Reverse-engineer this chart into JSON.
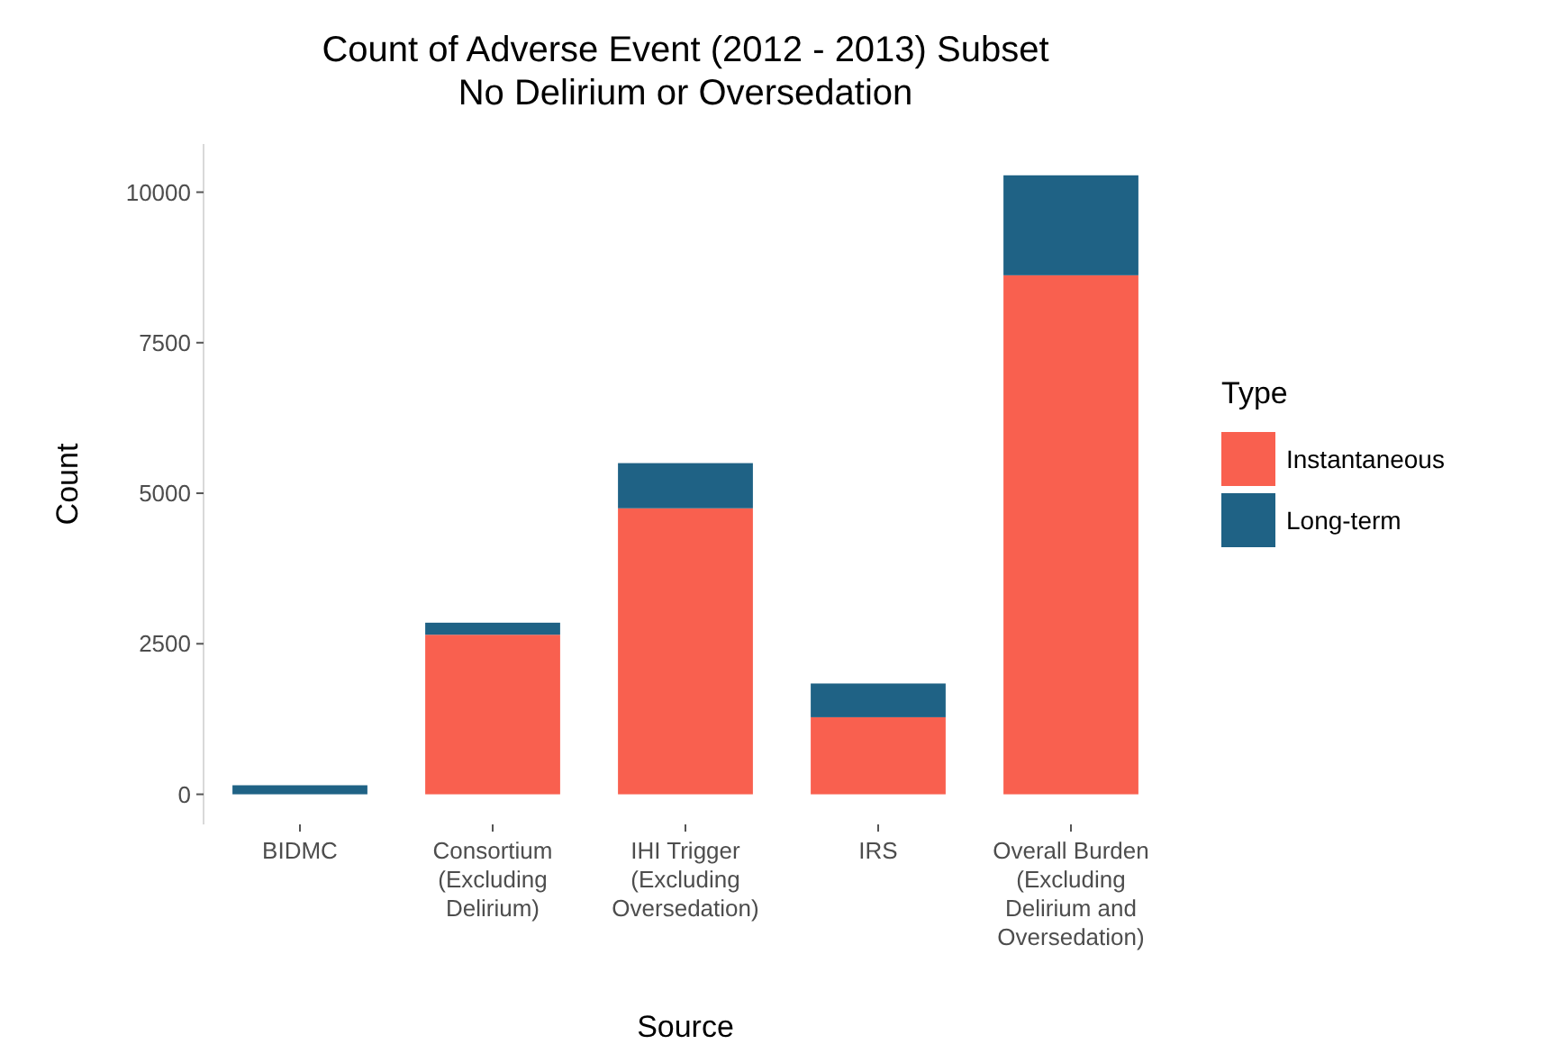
{
  "chart_data": {
    "type": "bar",
    "title": "Count of Adverse Event (2012 - 2013) Subset\nNo Delirium or Oversedation",
    "xlabel": "Source",
    "ylabel": "Count",
    "legend_title": "Type",
    "categories": [
      "BIDMC",
      "Consortium\n(Excluding\nDelirium)",
      "IHI Trigger\n(Excluding\nOversedation)",
      "IRS",
      "Overall Burden\n(Excluding\nDelirium and\nOversedation)"
    ],
    "stacked": true,
    "ylim": [
      -500,
      10800
    ],
    "yticks": [
      0,
      2500,
      5000,
      7500,
      10000
    ],
    "grid": false,
    "legend": "right",
    "series": [
      {
        "name": "Instantaneous",
        "color": "#f9604f",
        "values": [
          0,
          2650,
          4750,
          1280,
          8620
        ]
      },
      {
        "name": "Long-term",
        "color": "#1f6285",
        "values": [
          150,
          200,
          750,
          560,
          1660
        ]
      }
    ]
  }
}
